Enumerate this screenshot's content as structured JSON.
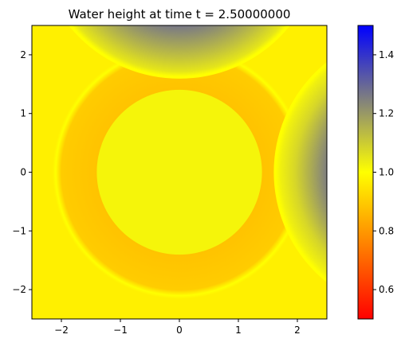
{
  "chart_data": {
    "type": "heatmap",
    "title": "Water height at time t =     2.50000000",
    "xlabel": "",
    "ylabel": "",
    "xlim": [
      -2.5,
      2.5
    ],
    "ylim": [
      -2.5,
      2.5
    ],
    "xticks": [
      -2,
      -1,
      0,
      1,
      2
    ],
    "yticks": [
      -2,
      -1,
      0,
      1,
      2
    ],
    "xtick_labels": [
      "−2",
      "−1",
      "0",
      "1",
      "2"
    ],
    "ytick_labels": [
      "−2",
      "−1",
      "0",
      "1",
      "2"
    ],
    "grid": false,
    "colorbar": {
      "range": [
        0.5,
        1.5
      ],
      "ticks": [
        0.6,
        0.8,
        1.0,
        1.2,
        1.4
      ],
      "tick_labels": [
        "0.6",
        "0.8",
        "1.0",
        "1.2",
        "1.4"
      ],
      "stops": [
        {
          "value": 0.5,
          "color": "#ff0000"
        },
        {
          "value": 1.0,
          "color": "#ffff00"
        },
        {
          "value": 1.25,
          "color": "#7f7f7f"
        },
        {
          "value": 1.5,
          "color": "#0000ff"
        }
      ]
    },
    "features": [
      {
        "name": "central-hump",
        "center": [
          0,
          0
        ],
        "radius": 1.4,
        "value": 1.02
      },
      {
        "name": "ring-trough",
        "center": [
          0,
          0
        ],
        "radius": 2.15,
        "value": 0.88
      },
      {
        "name": "top-wave",
        "center": [
          0,
          4.0
        ],
        "radius": 2.4,
        "value": 1.25
      },
      {
        "name": "right-wave",
        "center": [
          4.0,
          0
        ],
        "radius": 2.4,
        "value": 1.2
      }
    ]
  }
}
